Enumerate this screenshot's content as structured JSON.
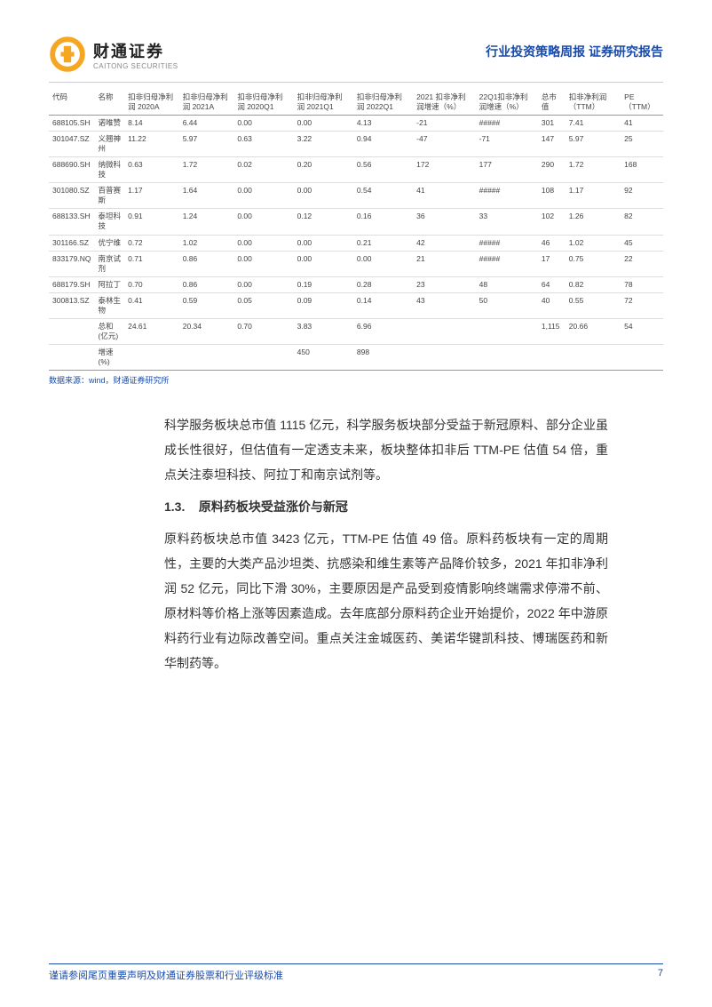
{
  "header": {
    "logo_cn": "财通证券",
    "logo_en": "CAITONG SECURITIES",
    "report_title": "行业投资策略周报  证券研究报告"
  },
  "table": {
    "columns": [
      "代码",
      "名称",
      "扣非归母净利润 2020A",
      "扣非归母净利润 2021A",
      "扣非归母净利润 2020Q1",
      "扣非归母净利润 2021Q1",
      "扣非归母净利润 2022Q1",
      "2021 扣非净利润增速（%）",
      "22Q1扣非净利润增速（%）",
      "总市值",
      "扣非净利润（TTM）",
      "PE（TTM）"
    ],
    "rows": [
      [
        "688105.SH",
        "诺唯赞",
        "8.14",
        "6.44",
        "0.00",
        "0.00",
        "4.13",
        "-21",
        "#####",
        "301",
        "7.41",
        "41"
      ],
      [
        "301047.SZ",
        "义翘神州",
        "11.22",
        "5.97",
        "0.63",
        "3.22",
        "0.94",
        "-47",
        "-71",
        "147",
        "5.97",
        "25"
      ],
      [
        "688690.SH",
        "纳微科技",
        "0.63",
        "1.72",
        "0.02",
        "0.20",
        "0.56",
        "172",
        "177",
        "290",
        "1.72",
        "168"
      ],
      [
        "301080.SZ",
        "百普赛斯",
        "1.17",
        "1.64",
        "0.00",
        "0.00",
        "0.54",
        "41",
        "#####",
        "108",
        "1.17",
        "92"
      ],
      [
        "688133.SH",
        "泰坦科技",
        "0.91",
        "1.24",
        "0.00",
        "0.12",
        "0.16",
        "36",
        "33",
        "102",
        "1.26",
        "82"
      ],
      [
        "301166.SZ",
        "优宁维",
        "0.72",
        "1.02",
        "0.00",
        "0.00",
        "0.21",
        "42",
        "#####",
        "46",
        "1.02",
        "45"
      ],
      [
        "833179.NQ",
        "南京试剂",
        "0.71",
        "0.86",
        "0.00",
        "0.00",
        "0.00",
        "21",
        "#####",
        "17",
        "0.75",
        "22"
      ],
      [
        "688179.SH",
        "阿拉丁",
        "0.70",
        "0.86",
        "0.00",
        "0.19",
        "0.28",
        "23",
        "48",
        "64",
        "0.82",
        "78"
      ],
      [
        "300813.SZ",
        "泰林生物",
        "0.41",
        "0.59",
        "0.05",
        "0.09",
        "0.14",
        "43",
        "50",
        "40",
        "0.55",
        "72"
      ]
    ],
    "summary": [
      [
        "",
        "总和(亿元)",
        "24.61",
        "20.34",
        "0.70",
        "3.83",
        "6.96",
        "",
        "",
        "1,115",
        "20.66",
        "54"
      ],
      [
        "",
        "增速(%)",
        "",
        "",
        "",
        "450",
        "898",
        "",
        "",
        "",
        "",
        ""
      ]
    ],
    "source": "数据来源：wind，财通证券研究所"
  },
  "body": {
    "p1": "科学服务板块总市值 1115 亿元，科学服务板块部分受益于新冠原料、部分企业虽成长性很好，但估值有一定透支未来，板块整体扣非后 TTM-PE 估值 54 倍，重点关注泰坦科技、阿拉丁和南京试剂等。",
    "section_no": "1.3.",
    "section_title": "原料药板块受益涨价与新冠",
    "p2": "原料药板块总市值 3423 亿元，TTM-PE 估值 49 倍。原料药板块有一定的周期性，主要的大类产品沙坦类、抗感染和维生素等产品降价较多，2021 年扣非净利润 52 亿元，同比下滑 30%，主要原因是产品受到疫情影响终端需求停滞不前、原材料等价格上涨等因素造成。去年底部分原料药企业开始提价，2022 年中游原料药行业有边际改善空间。重点关注金城医药、美诺华键凯科技、博瑞医药和新华制药等。"
  },
  "footer": {
    "disclaimer": "谨请参阅尾页重要声明及财通证券股票和行业评级标准",
    "page": "7"
  },
  "style": {
    "brand_color": "#1a4ba8",
    "logo_gold": "#f5a623",
    "text_color": "#333333"
  }
}
